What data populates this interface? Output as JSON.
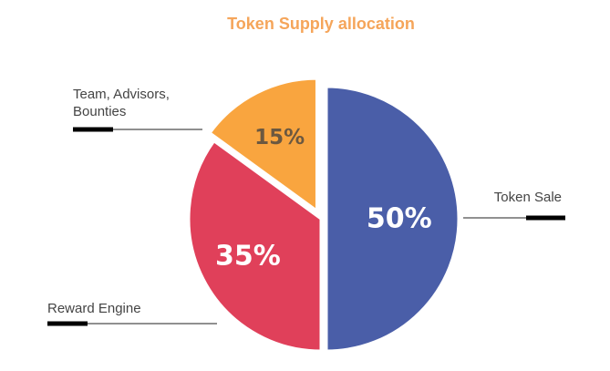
{
  "chart_data": {
    "type": "pie",
    "title": "Token Supply allocation",
    "slices": [
      {
        "label": "Token Sale",
        "value": 50,
        "display": "50%",
        "color": "#4a5ea8"
      },
      {
        "label": "Reward Engine",
        "value": 35,
        "display": "35%",
        "color": "#e0405a"
      },
      {
        "label": "Team, Advisors, Bounties",
        "value": 15,
        "display": "15%",
        "color": "#f9a53f"
      }
    ],
    "title_color": "#f5a55a",
    "label_colors": {
      "Token Sale": "#ffffff",
      "Reward Engine": "#ffffff",
      "Team, Advisors, Bounties": "#6b5840"
    },
    "legend_accent_color": "#000000"
  }
}
